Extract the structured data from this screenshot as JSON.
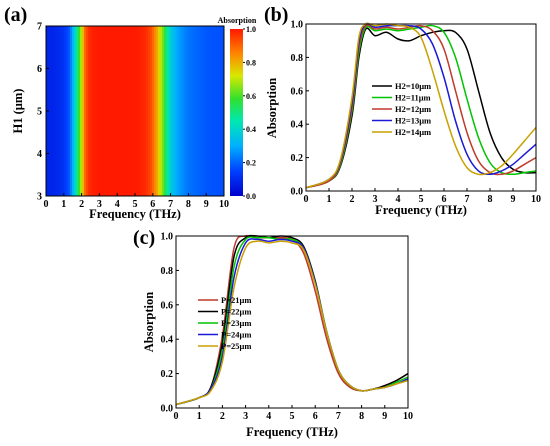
{
  "panels": {
    "a": {
      "label": "(a)",
      "chart_data": {
        "type": "heatmap",
        "xlabel": "Frequency (THz)",
        "ylabel": "H1 (μm)",
        "xlim": [
          0,
          10
        ],
        "ylim": [
          3,
          7
        ],
        "xticks": [
          "0",
          "1",
          "2",
          "3",
          "4",
          "5",
          "6",
          "7",
          "8",
          "9",
          "10"
        ],
        "yticks": [
          "3",
          "4",
          "5",
          "6",
          "7"
        ],
        "colorbar_title": "Absorption",
        "colorbar_ticks": [
          "0.0",
          "0.2",
          "0.4",
          "0.6",
          "0.8",
          "1.0"
        ],
        "colorbar_range": [
          0,
          1
        ],
        "profile": {
          "freq": [
            0,
            0.5,
            1.0,
            1.3,
            1.5,
            1.7,
            1.9,
            2.05,
            2.2,
            2.4,
            2.6,
            3.0,
            4.0,
            5.0,
            5.6,
            5.9,
            6.1,
            6.25,
            6.4,
            6.6,
            6.8,
            7.0,
            7.3,
            7.6,
            8.0,
            9.0,
            10.0
          ],
          "absorption": [
            0.08,
            0.09,
            0.12,
            0.18,
            0.3,
            0.45,
            0.62,
            0.75,
            0.9,
            0.97,
            0.99,
            1.0,
            1.0,
            1.0,
            0.98,
            0.93,
            0.86,
            0.8,
            0.72,
            0.62,
            0.48,
            0.38,
            0.3,
            0.26,
            0.22,
            0.18,
            0.17
          ]
        }
      }
    },
    "b": {
      "label": "(b)",
      "chart_data": {
        "type": "line",
        "xlabel": "Frequency (THz)",
        "ylabel": "Absorption",
        "xlim": [
          0,
          10
        ],
        "ylim": [
          0,
          1
        ],
        "xticks": [
          "0",
          "1",
          "2",
          "3",
          "4",
          "5",
          "6",
          "7",
          "8",
          "9",
          "10"
        ],
        "yticks": [
          "0.0",
          "0.2",
          "0.4",
          "0.6",
          "0.8",
          "1.0"
        ],
        "legend_position": "right",
        "series": [
          {
            "name": "H2=10μm",
            "color": "#000000",
            "x": [
              0,
              1,
              1.5,
              2.0,
              2.3,
              2.6,
              3.0,
              3.5,
              4.0,
              4.5,
              5.0,
              5.5,
              6.0,
              6.5,
              7.0,
              7.5,
              8.0,
              8.5,
              9.0,
              9.5,
              10
            ],
            "y": [
              0.02,
              0.06,
              0.15,
              0.45,
              0.8,
              0.97,
              0.93,
              0.95,
              0.91,
              0.9,
              0.93,
              0.95,
              0.96,
              0.95,
              0.85,
              0.6,
              0.35,
              0.2,
              0.13,
              0.11,
              0.11
            ]
          },
          {
            "name": "H2=11μm",
            "color": "#00c400",
            "x": [
              0,
              1,
              1.5,
              2.0,
              2.3,
              2.6,
              3.0,
              3.5,
              4.0,
              4.5,
              5.0,
              5.5,
              6.0,
              6.5,
              7.0,
              7.5,
              8.0,
              8.5,
              9.0,
              9.5,
              10
            ],
            "y": [
              0.02,
              0.06,
              0.16,
              0.48,
              0.83,
              0.98,
              0.96,
              0.97,
              0.96,
              0.97,
              0.98,
              0.99,
              0.95,
              0.8,
              0.55,
              0.32,
              0.17,
              0.11,
              0.1,
              0.11,
              0.12
            ]
          },
          {
            "name": "H2=12μm",
            "color": "#c0392b",
            "x": [
              0,
              1,
              1.5,
              2.0,
              2.3,
              2.6,
              3.0,
              3.5,
              4.0,
              4.5,
              5.0,
              5.5,
              6.0,
              6.5,
              7.0,
              7.5,
              8.0,
              8.5,
              9.0,
              9.5,
              10
            ],
            "y": [
              0.02,
              0.06,
              0.17,
              0.5,
              0.86,
              0.99,
              0.97,
              0.98,
              0.97,
              0.98,
              0.99,
              0.96,
              0.85,
              0.6,
              0.35,
              0.18,
              0.11,
              0.1,
              0.12,
              0.16,
              0.2
            ]
          },
          {
            "name": "H2=13μm",
            "color": "#1a1ad6",
            "x": [
              0,
              1,
              1.5,
              2.0,
              2.3,
              2.6,
              3.0,
              3.5,
              4.0,
              4.5,
              5.0,
              5.5,
              6.0,
              6.5,
              7.0,
              7.5,
              8.0,
              8.5,
              9.0,
              9.5,
              10
            ],
            "y": [
              0.02,
              0.07,
              0.18,
              0.53,
              0.89,
              1.0,
              0.98,
              0.99,
              0.99,
              0.99,
              0.97,
              0.88,
              0.68,
              0.42,
              0.22,
              0.12,
              0.1,
              0.12,
              0.16,
              0.22,
              0.28
            ]
          },
          {
            "name": "H2=14μm",
            "color": "#c8a000",
            "x": [
              0,
              1,
              1.5,
              2.0,
              2.3,
              2.6,
              3.0,
              3.5,
              4.0,
              4.5,
              5.0,
              5.5,
              6.0,
              6.5,
              7.0,
              7.5,
              8.0,
              8.5,
              9.0,
              9.5,
              10
            ],
            "y": [
              0.02,
              0.07,
              0.19,
              0.56,
              0.92,
              1.0,
              0.99,
              1.0,
              0.99,
              0.98,
              0.92,
              0.72,
              0.48,
              0.27,
              0.14,
              0.1,
              0.11,
              0.15,
              0.22,
              0.3,
              0.38
            ]
          }
        ]
      }
    },
    "c": {
      "label": "(c)",
      "chart_data": {
        "type": "line",
        "xlabel": "Frequency (THz)",
        "ylabel": "Absorption",
        "xlim": [
          0,
          10
        ],
        "ylim": [
          0,
          1
        ],
        "xticks": [
          "0",
          "1",
          "2",
          "3",
          "4",
          "5",
          "6",
          "7",
          "8",
          "9",
          "10"
        ],
        "yticks": [
          "0.0",
          "0.2",
          "0.4",
          "0.6",
          "0.8",
          "1.0"
        ],
        "legend_position": "left",
        "series": [
          {
            "name": "P=21μm",
            "color": "#c0392b",
            "x": [
              0,
              1,
              1.5,
              2.0,
              2.5,
              3.0,
              3.5,
              4.0,
              4.5,
              5.0,
              5.5,
              6.0,
              6.5,
              7.0,
              7.5,
              8.0,
              8.5,
              9.0,
              9.5,
              10
            ],
            "y": [
              0.02,
              0.06,
              0.12,
              0.42,
              0.93,
              1.0,
              0.99,
              0.99,
              0.99,
              0.98,
              0.9,
              0.68,
              0.4,
              0.2,
              0.12,
              0.1,
              0.11,
              0.13,
              0.16,
              0.2
            ]
          },
          {
            "name": "P=22μm",
            "color": "#000000",
            "x": [
              0,
              1,
              1.5,
              2.0,
              2.5,
              3.0,
              3.5,
              4.0,
              4.5,
              5.0,
              5.5,
              6.0,
              6.5,
              7.0,
              7.5,
              8.0,
              8.5,
              9.0,
              9.5,
              10
            ],
            "y": [
              0.02,
              0.06,
              0.12,
              0.38,
              0.88,
              0.99,
              1.0,
              0.99,
              1.0,
              0.99,
              0.94,
              0.74,
              0.44,
              0.22,
              0.13,
              0.1,
              0.11,
              0.13,
              0.16,
              0.2
            ]
          },
          {
            "name": "P=23μm",
            "color": "#00c400",
            "x": [
              0,
              1,
              1.5,
              2.0,
              2.5,
              3.0,
              3.5,
              4.0,
              4.5,
              5.0,
              5.5,
              6.0,
              6.5,
              7.0,
              7.5,
              8.0,
              8.5,
              9.0,
              9.5,
              10
            ],
            "y": [
              0.02,
              0.06,
              0.11,
              0.34,
              0.82,
              0.98,
              0.99,
              0.99,
              0.98,
              0.98,
              0.93,
              0.73,
              0.44,
              0.22,
              0.13,
              0.1,
              0.11,
              0.12,
              0.15,
              0.18
            ]
          },
          {
            "name": "P=24μm",
            "color": "#1a1ad6",
            "x": [
              0,
              1,
              1.5,
              2.0,
              2.5,
              3.0,
              3.5,
              4.0,
              4.5,
              5.0,
              5.5,
              6.0,
              6.5,
              7.0,
              7.5,
              8.0,
              8.5,
              9.0,
              9.5,
              10
            ],
            "y": [
              0.02,
              0.06,
              0.11,
              0.3,
              0.76,
              0.96,
              0.98,
              0.97,
              0.98,
              0.97,
              0.93,
              0.73,
              0.44,
              0.22,
              0.13,
              0.1,
              0.11,
              0.12,
              0.14,
              0.17
            ]
          },
          {
            "name": "P=25μm",
            "color": "#c8a000",
            "x": [
              0,
              1,
              1.5,
              2.0,
              2.5,
              3.0,
              3.5,
              4.0,
              4.5,
              5.0,
              5.5,
              6.0,
              6.5,
              7.0,
              7.5,
              8.0,
              8.5,
              9.0,
              9.5,
              10
            ],
            "y": [
              0.02,
              0.06,
              0.1,
              0.27,
              0.7,
              0.93,
              0.97,
              0.96,
              0.97,
              0.96,
              0.92,
              0.72,
              0.44,
              0.22,
              0.13,
              0.1,
              0.11,
              0.12,
              0.14,
              0.16
            ]
          }
        ]
      }
    }
  }
}
